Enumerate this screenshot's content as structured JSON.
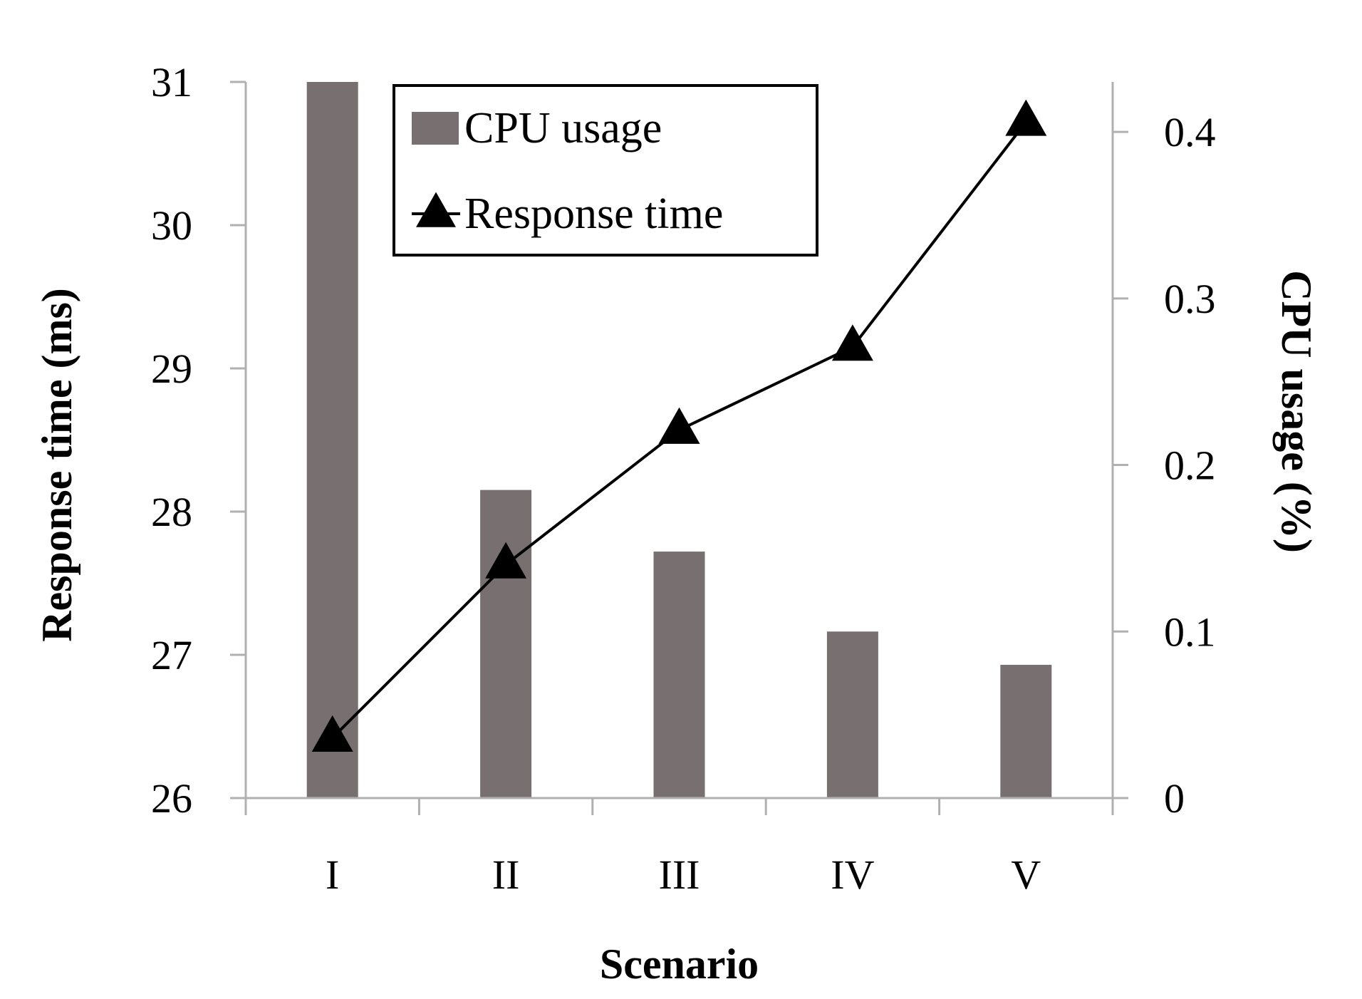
{
  "chart_data": {
    "type": "bar",
    "title": "",
    "xlabel": "Scenario",
    "ylabel": "Response time (ms)",
    "y2label": "CPU usage (%)",
    "categories": [
      "I",
      "II",
      "III",
      "IV",
      "V"
    ],
    "ylim": [
      26,
      31
    ],
    "y2lim": [
      0,
      0.43
    ],
    "yticks": [
      26,
      27,
      28,
      29,
      30,
      31
    ],
    "y2ticks": [
      0,
      0.1,
      0.2,
      0.3,
      0.4
    ],
    "ytick_labels": [
      "26",
      "27",
      "28",
      "29",
      "30",
      "31"
    ],
    "y2tick_labels": [
      "0",
      "0.1",
      "0.2",
      "0.3",
      "0.4"
    ],
    "grid": false,
    "legend_position": "top-left",
    "series": [
      {
        "name": "CPU usage",
        "type": "bar",
        "axis": "right",
        "color": "#787070",
        "values": [
          0.43,
          0.185,
          0.148,
          0.1,
          0.08
        ]
      },
      {
        "name": "Response time",
        "type": "line",
        "axis": "left",
        "marker": "triangle",
        "color": "#000000",
        "values": [
          26.42,
          27.63,
          28.57,
          29.15,
          30.72
        ]
      }
    ]
  }
}
